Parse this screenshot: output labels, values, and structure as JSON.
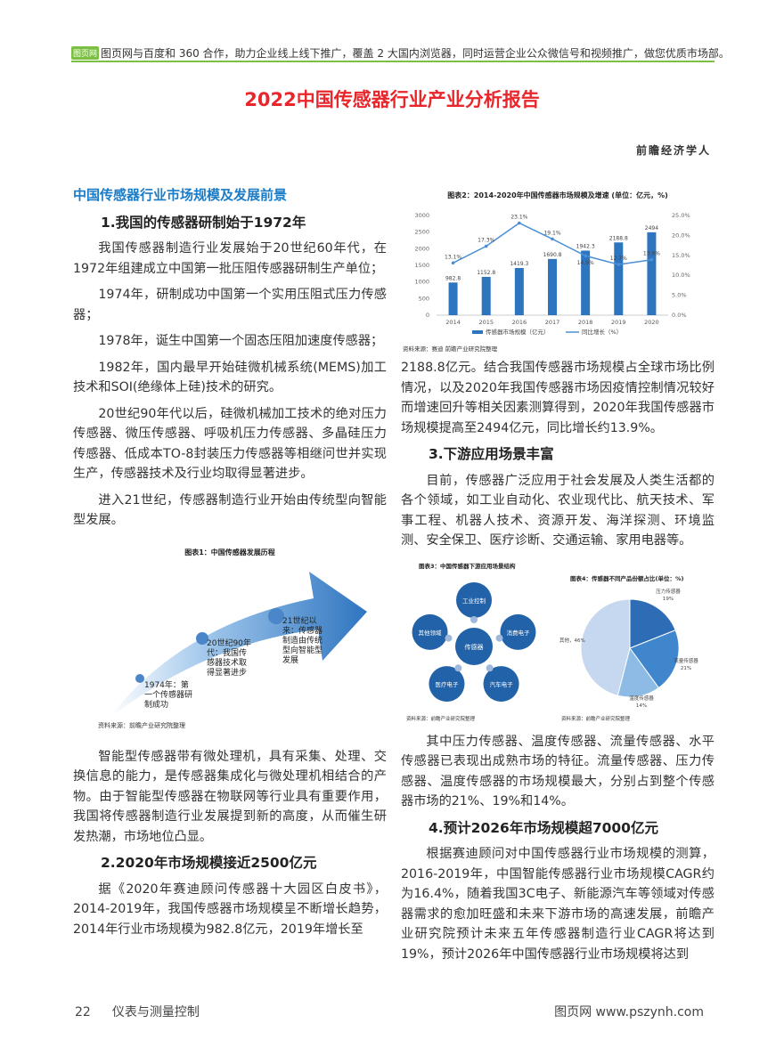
{
  "header": {
    "logo": "图页网",
    "banner": "图页网与百度和 360 合作，助力企业线上线下推广，覆盖 2 大国内浏览器，同时运营企业公众微信号和视频推广，做您优质市场部。"
  },
  "title": "2022中国传感器行业产业分析报告",
  "brand": "前瞻经济学人",
  "left": {
    "section": "中国传感器行业市场规模及发展前景",
    "h1": "1.我国的传感器研制始于1972年",
    "p1": "我国传感器制造行业发展始于20世纪60年代，在1972年组建成立中国第一批压阻传感器研制生产单位；",
    "p2": "1974年，研制成功中国第一个实用压阻式压力传感器；",
    "p3": "1978年，诞生中国第一个固态压阻加速度传感器；",
    "p4": "1982年，国内最早开始硅微机械系统(MEMS)加工技术和SOI(绝缘体上硅)技术的研究。",
    "p5": "20世纪90年代以后，硅微机械加工技术的绝对压力传感器、微压传感器、呼吸机压力传感器、多晶硅压力传感器、低成本TO-8封装压力传感器等相继问世并实现生产，传感器技术及行业均取得显著进步。",
    "p6": "进入21世纪，传感器制造行业开始由传统型向智能型发展。",
    "fig1": {
      "title": "图表1：中国传感器发展历程",
      "m1": [
        "1974年：第",
        "一个传感器研",
        "制成功"
      ],
      "m2": [
        "20世纪90年",
        "代：我国传",
        "感器技术取",
        "得显著进步"
      ],
      "m3": [
        "21世纪以",
        "来：传感器",
        "制造由传统",
        "型向智能型",
        "发展"
      ],
      "source": "资料来源：前瞻产业研究院整理"
    },
    "p7": "智能型传感器带有微处理机，具有采集、处理、交换信息的能力，是传感器集成化与微处理机相结合的产物。由于智能型传感器在物联网等行业具有重要作用，我国将传感器制造行业发展提到新的高度，从而催生研发热潮，市场地位凸显。",
    "h2": "2.2020年市场规模接近2500亿元",
    "p8": "据《2020年赛迪顾问传感器十大园区白皮书》，2014-2019年，我国传感器市场规模呈不断增长趋势，2014年行业市场规模为982.8亿元，2019年增长至"
  },
  "right": {
    "p1": "2188.8亿元。结合我国传感器市场规模占全球市场比例情况，以及2020年我国传感器市场因疫情控制情况较好而增速回升等相关因素测算得到，2020年我国传感器市场规模提高至2494亿元，同比增长约13.9%。",
    "h3": "3.下游应用场景丰富",
    "p2": "目前，传感器广泛应用于社会发展及人类生活都的各个领域，如工业自动化、农业现代比、航天技术、军事工程、机器人技术、资源开发、海洋探测、环境监测、安全保卫、医疗诊断、交通运输、家用电器等。",
    "fig3": {
      "title": "图表3：中国传感器下游应用场景结构",
      "center": "传感器",
      "nodes": [
        "工业控制",
        "消费电子",
        "汽车电子",
        "医疗电子",
        "其他领域"
      ],
      "source": "资料来源：前瞻产业研究院整理"
    },
    "p3": "其中压力传感器、温度传感器、流量传感器、水平传感器已表现出成熟市场的特征。流量传感器、压力传感器、温度传感器的市场规模最大，分别占到整个传感器市场的21%、19%和14%。",
    "h4": "4.预计2026年市场规模超7000亿元",
    "p4": "根据赛迪顾问对中国传感器行业市场规模的测算，2016-2019年，中国智能传感器行业市场规模CAGR约为16.4%，随着我国3C电子、新能源汽车等领域对传感器需求的愈加旺盛和未来下游市场的高速发展，前瞻产业研究院预计未来五年传感器制造行业CAGR将达到19%，预计2026年中国传感器行业市场规模将达到"
  },
  "footer": {
    "page": "22",
    "journal": "仪表与测量控制",
    "site": "图页网  www.pszynh.com"
  },
  "chart_data": [
    {
      "type": "bar+line",
      "title": "图表2：2014-2020年中国传感器市场规模及增速 (单位：亿元，%)",
      "categories": [
        "2014",
        "2015",
        "2016",
        "2017",
        "2018",
        "2019",
        "2020"
      ],
      "series": [
        {
          "name": "传感器市场规模（亿元）",
          "type": "bar",
          "axis": "left",
          "values": [
            982.8,
            1152.8,
            1419.3,
            1690.8,
            1942.3,
            2188.8,
            2494
          ]
        },
        {
          "name": "同比增长（%）",
          "type": "line",
          "axis": "right",
          "values": [
            13.1,
            17.3,
            23.1,
            19.1,
            14.9,
            12.7,
            13.9
          ]
        }
      ],
      "ylim": [
        0,
        3000
      ],
      "yticks": [
        "0",
        "500",
        "1000",
        "1500",
        "2000",
        "2500",
        "3000"
      ],
      "y2lim": [
        0,
        25
      ],
      "y2ticks": [
        "0.0%",
        "5.0%",
        "10.0%",
        "15.0%",
        "20.0%",
        "25.0%"
      ],
      "legend": "bottom",
      "source": "资料来源：赛迪 前瞻产业研究院整理",
      "colors": {
        "bar": "#2e75c0",
        "line": "#4a8fd6"
      }
    },
    {
      "type": "pie",
      "title": "图表4：传感器不同产品份额占比(单位：%)",
      "labels": [
        "压力传感器",
        "流量传感器",
        "温度传感器",
        "其他"
      ],
      "values": [
        19,
        21,
        14,
        46
      ],
      "colors": [
        "#2e6db5",
        "#3f86cc",
        "#8dbbe6",
        "#c5d8ef"
      ],
      "source": "资料来源：前瞻产业研究院整理"
    }
  ]
}
